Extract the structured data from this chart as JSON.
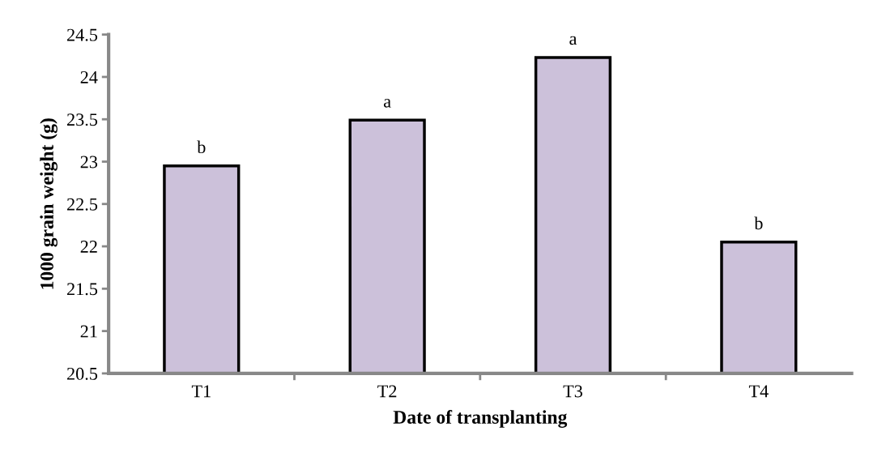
{
  "chart_data": {
    "type": "bar",
    "xlabel": "Date of transplanting",
    "ylabel": "1000 grain weight (g)",
    "categories": [
      "T1",
      "T2",
      "T3",
      "T4"
    ],
    "values": [
      22.95,
      23.49,
      24.23,
      22.05
    ],
    "color": "#ccc1da",
    "ylim": [
      20.5,
      24.5
    ],
    "yticks": [
      {
        "value": 20.5,
        "label": "20.5"
      },
      {
        "value": 21,
        "label": "21"
      },
      {
        "value": 21.5,
        "label": "21.5"
      },
      {
        "value": 22,
        "label": "22"
      },
      {
        "value": 22.5,
        "label": "22.5"
      },
      {
        "value": 23,
        "label": "23"
      },
      {
        "value": 23.5,
        "label": "23.5"
      },
      {
        "value": 24,
        "label": "24"
      },
      {
        "value": 24.5,
        "label": "24.5"
      }
    ],
    "grid": false,
    "annotations": [
      {
        "text": "b",
        "x": "T1",
        "y": 22.95
      },
      {
        "text": "a",
        "x": "T2",
        "y": 23.49
      },
      {
        "text": "a",
        "x": "T3",
        "y": 24.23
      },
      {
        "text": "b",
        "x": "T4",
        "y": 22.05
      }
    ]
  }
}
